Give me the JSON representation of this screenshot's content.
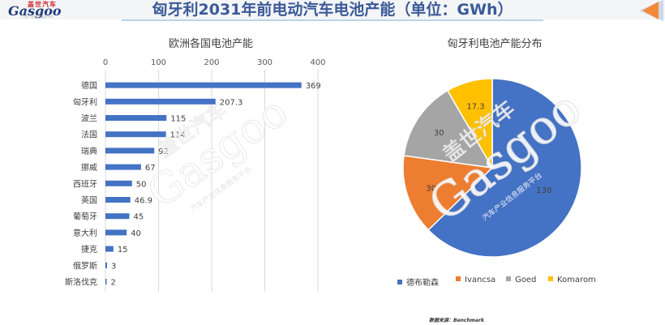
{
  "header": {
    "title": "匈牙利2031年前电动汽车电池产能（单位：GWh）",
    "logo_cn": "盖世汽车",
    "logo_en": "Gasgoo",
    "logo_tagline": "汽车产业信息服务平台"
  },
  "colors": {
    "bar": "#4472c4",
    "pie": [
      "#4472c4",
      "#ed7d31",
      "#a5a5a5",
      "#ffc000"
    ],
    "title": "#3a5a98",
    "nav_arrow": "#f28a3a"
  },
  "watermark": {
    "brand_cn": "盖世汽车",
    "brand_en": "Gasgoo",
    "tagline": "汽车产业信息服务平台"
  },
  "chart_data": [
    {
      "type": "bar",
      "orientation": "horizontal",
      "title": "欧洲各国电池产能",
      "categories": [
        "德国",
        "匈牙利",
        "波兰",
        "法国",
        "瑞典",
        "挪威",
        "西班牙",
        "英国",
        "葡萄牙",
        "意大利",
        "捷克",
        "俄罗斯",
        "斯洛伐克"
      ],
      "values": [
        369,
        207.3,
        115,
        114,
        92,
        67,
        50,
        46.9,
        45,
        40,
        15,
        3,
        2
      ],
      "value_labels": [
        "369",
        "207.3",
        "115",
        "114",
        "92",
        "67",
        "50",
        "46.9",
        "45",
        "40",
        "15",
        "3",
        "2"
      ],
      "xticks": [
        "0",
        "100",
        "200",
        "300",
        "400"
      ],
      "xlim": [
        0,
        400
      ],
      "axis_position": "top",
      "grid": true
    },
    {
      "type": "pie",
      "title": "匈牙利电池产能分布",
      "labels": [
        "德布勒森",
        "Ivancsa",
        "Goed",
        "Komarom"
      ],
      "values": [
        130,
        30,
        30,
        17.3
      ],
      "value_labels": [
        "130",
        "30",
        "30",
        "17.3"
      ],
      "legend_position": "bottom"
    }
  ],
  "source": {
    "label": "数据来源：",
    "value": "Benchmark"
  }
}
